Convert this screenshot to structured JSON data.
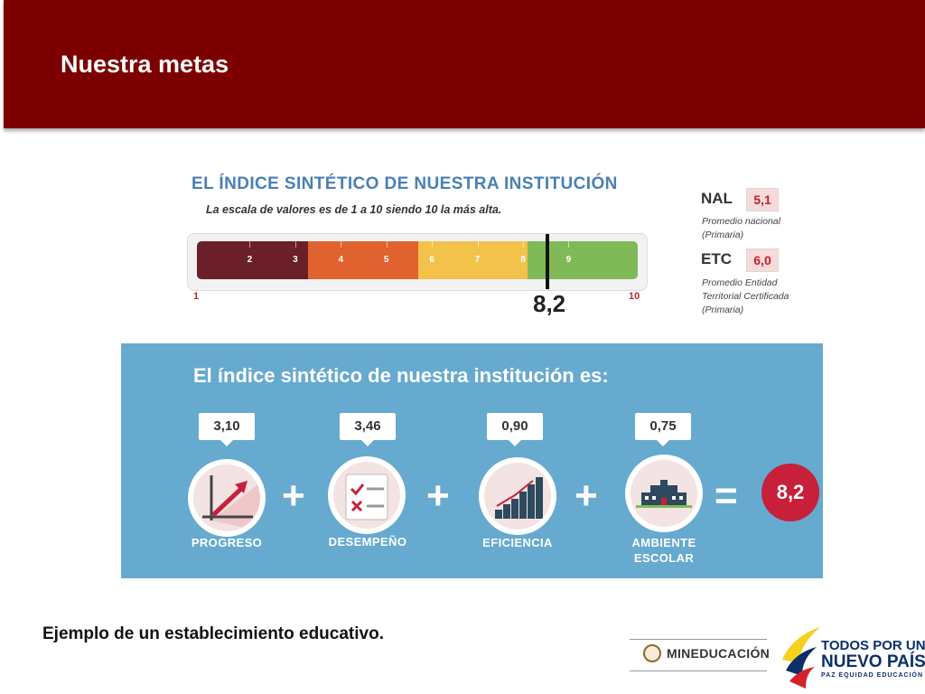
{
  "header": {
    "title": "Nuestra metas"
  },
  "scale": {
    "title": "EL ÍNDICE SINTÉTICO DE NUESTRA INSTITUCIÓN",
    "subtitle": "La escala de valores es de 1 a 10 siendo 10 la más alta.",
    "min_label": "1",
    "max_label": "10",
    "tick_labels": [
      "2",
      "3",
      "4",
      "5",
      "6",
      "7",
      "8",
      "9"
    ],
    "value": "8,2",
    "value_numeric": 8.2,
    "colors": [
      "#6b1f28",
      "#e0622e",
      "#f2c24a",
      "#7fba56"
    ]
  },
  "references": [
    {
      "code": "NAL",
      "value": "5,1",
      "desc_line1": "Promedio nacional",
      "desc_line2": "(Primaria)",
      "desc_line3": ""
    },
    {
      "code": "ETC",
      "value": "6,0",
      "desc_line1": "Promedio Entidad",
      "desc_line2": "Territorial Certificada",
      "desc_line3": "(Primaria)"
    }
  ],
  "panel": {
    "title": "El índice sintético de nuestra institución es:",
    "components": [
      {
        "value": "3,10",
        "label": "PROGRESO",
        "label2": "",
        "icon": "progress-chart-icon"
      },
      {
        "value": "3,46",
        "label": "DESEMPEÑO",
        "label2": "",
        "icon": "checklist-icon"
      },
      {
        "value": "0,90",
        "label": "EFICIENCIA",
        "label2": "",
        "icon": "stairs-chart-icon"
      },
      {
        "value": "0,75",
        "label": "AMBIENTE",
        "label2": "ESCOLAR",
        "icon": "school-building-icon"
      }
    ],
    "operators": [
      "+",
      "+",
      "+",
      "="
    ],
    "result": "8,2",
    "accent_color": "#66aacf",
    "result_color": "#c8203a"
  },
  "caption": "Ejemplo de un establecimiento educativo.",
  "logos": {
    "ministry": "MINEDUCACIÓN",
    "gov_line1": "TODOS POR UN",
    "gov_line2": "NUEVO PAÍS",
    "gov_line3": "PAZ  EQUIDAD  EDUCACIÓN"
  }
}
